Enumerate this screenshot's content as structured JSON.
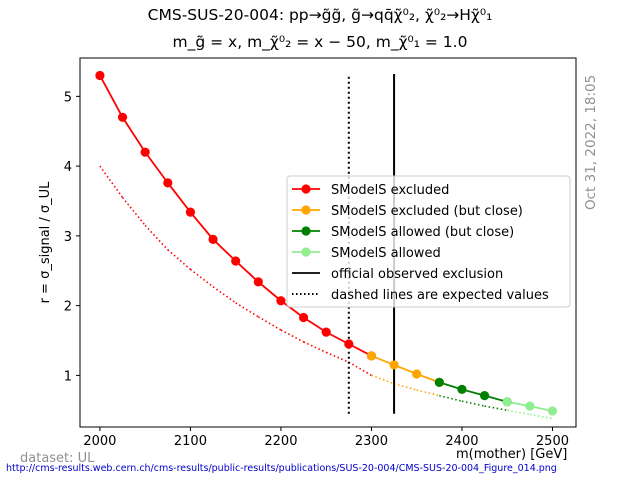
{
  "title_line1": "CMS-SUS-20-004: pp→g̃g̃, g̃→qq̄χ̃⁰₂, χ̃⁰₂→Hχ̃⁰₁",
  "title_line2": "m_g̃ = x, m_χ̃⁰₂ = x − 50, m_χ̃⁰₁ = 1.0",
  "timestamp": "Oct 31, 2022, 18:05",
  "dataset_label": "dataset: UL",
  "source_url": "http://cms-results.web.cern.ch/cms-results/public-results/publications/SUS-20-004/CMS-SUS-20-004_Figure_014.png",
  "chart_data": {
    "type": "line",
    "xlabel": "m(mother) [GeV]",
    "ylabel": "r = σ_signal / σ_UL",
    "xlim": [
      1978,
      2526
    ],
    "ylim": [
      0.26,
      5.55
    ],
    "xticks": [
      2000,
      2100,
      2200,
      2300,
      2400,
      2500
    ],
    "yticks": [
      1,
      2,
      3,
      4,
      5
    ],
    "grid": false,
    "legend_position": "center-right",
    "series": [
      {
        "name": "SModelS excluded",
        "color": "#ff0000",
        "x": [
          2000,
          2025,
          2050,
          2075,
          2100,
          2125,
          2150,
          2175,
          2200,
          2225,
          2250,
          2275,
          2300
        ],
        "y": [
          5.3,
          4.7,
          4.2,
          3.76,
          3.34,
          2.95,
          2.64,
          2.34,
          2.07,
          1.83,
          1.62,
          1.45,
          1.28
        ]
      },
      {
        "name": "SModelS excluded (but close)",
        "color": "#ffa500",
        "x": [
          2300,
          2325,
          2350,
          2375
        ],
        "y": [
          1.28,
          1.15,
          1.02,
          0.9
        ]
      },
      {
        "name": "SModelS allowed (but close)",
        "color": "#008000",
        "x": [
          2375,
          2400,
          2425,
          2450
        ],
        "y": [
          0.9,
          0.8,
          0.71,
          0.62
        ]
      },
      {
        "name": "SModelS allowed",
        "color": "#90ee90",
        "x": [
          2450,
          2475,
          2500
        ],
        "y": [
          0.62,
          0.56,
          0.49
        ]
      }
    ],
    "expected_curve": {
      "x": [
        2000,
        2025,
        2050,
        2075,
        2100,
        2125,
        2150,
        2175,
        2200,
        2225,
        2250,
        2275,
        2300,
        2325,
        2350,
        2375,
        2400,
        2425,
        2450,
        2475,
        2500
      ],
      "y": [
        4.0,
        3.55,
        3.15,
        2.8,
        2.52,
        2.27,
        2.04,
        1.84,
        1.65,
        1.48,
        1.33,
        1.19,
        1.0,
        0.88,
        0.79,
        0.71,
        0.63,
        0.56,
        0.5,
        0.44,
        0.38
      ],
      "colors": [
        "#ff0000",
        "#ff0000",
        "#ff0000",
        "#ff0000",
        "#ff0000",
        "#ff0000",
        "#ff0000",
        "#ff0000",
        "#ff0000",
        "#ff0000",
        "#ff0000",
        "#ff0000",
        "#ffa500",
        "#ffa500",
        "#ffa500",
        "#008000",
        "#008000",
        "#008000",
        "#90ee90",
        "#90ee90",
        "#90ee90"
      ]
    },
    "official_observed_exclusion": {
      "x": 2325,
      "y_range": [
        0.45,
        5.32
      ],
      "color": "#000000"
    },
    "official_expected_exclusion": {
      "x": 2275,
      "y_range": [
        0.45,
        5.32
      ],
      "color": "#000000"
    },
    "legend": [
      {
        "label": "SModelS excluded",
        "color": "#ff0000",
        "style": "marker-line"
      },
      {
        "label": "SModelS excluded (but close)",
        "color": "#ffa500",
        "style": "marker-line"
      },
      {
        "label": "SModelS allowed (but close)",
        "color": "#008000",
        "style": "marker-line"
      },
      {
        "label": "SModelS allowed",
        "color": "#90ee90",
        "style": "marker-line"
      },
      {
        "label": "official observed exclusion",
        "color": "#000000",
        "style": "solid"
      },
      {
        "label": "dashed lines are expected values",
        "color": "#000000",
        "style": "dotted"
      }
    ]
  }
}
